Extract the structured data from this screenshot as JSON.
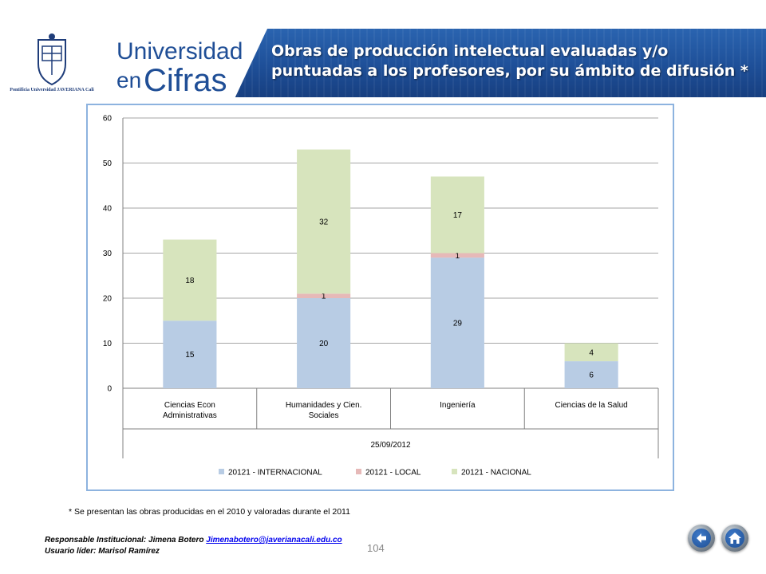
{
  "header": {
    "logo_text": "Pontificia Universidad JAVERIANA Cali",
    "brand_line1": "Universidad",
    "brand_line2_prefix": "en",
    "brand_line2_main": "Cifras",
    "title_line1": "Obras de producción intelectual evaluadas y/o",
    "title_line2": "puntuadas a los profesores, por su ámbito de difusión *"
  },
  "chart_data": {
    "type": "bar",
    "stacked": true,
    "categories": [
      "Ciencias Econ Administrativas",
      "Humanidades y Cien. Sociales",
      "Ingeniería",
      "Ciencias de la Salud"
    ],
    "category_label_lines": [
      [
        "Ciencias Econ",
        "Administrativas"
      ],
      [
        "Humanidades y Cien.",
        "Sociales"
      ],
      [
        "Ingeniería"
      ],
      [
        "Ciencias de la Salud"
      ]
    ],
    "group_label": "25/09/2012",
    "series": [
      {
        "name": "20121 - INTERNACIONAL",
        "values": [
          15,
          20,
          29,
          6
        ],
        "labels": [
          "15",
          "20",
          "29",
          "6"
        ],
        "color": "#b8cce4"
      },
      {
        "name": "20121 - LOCAL",
        "values": [
          0,
          1,
          1,
          0
        ],
        "labels": [
          "",
          "1",
          "1",
          ""
        ],
        "color": "#e6b9b8"
      },
      {
        "name": "20121 - NACIONAL",
        "values": [
          18,
          32,
          17,
          4
        ],
        "labels": [
          "18",
          "32",
          "17",
          "4"
        ],
        "color": "#d7e4bd"
      }
    ],
    "ylim": [
      0,
      60
    ],
    "yticks": [
      "0",
      "10",
      "20",
      "30",
      "40",
      "50",
      "60"
    ],
    "grid": true,
    "legend_position": "bottom",
    "xlabel": "",
    "ylabel": "",
    "title": ""
  },
  "footnote": "* Se presentan las obras producidas en el 2010 y valoradas durante el 2011",
  "footer": {
    "responsible_label": "Responsable Institucional: Jimena Botero",
    "responsible_email": "Jimenabotero@javerianacali.edu.co",
    "leader": "Usuario líder: Marisol Ramírez",
    "page_number": "104"
  },
  "nav": {
    "back_icon": "back-arrow-icon",
    "home_icon": "home-icon",
    "colors": {
      "button": "#2a5ea8"
    }
  }
}
